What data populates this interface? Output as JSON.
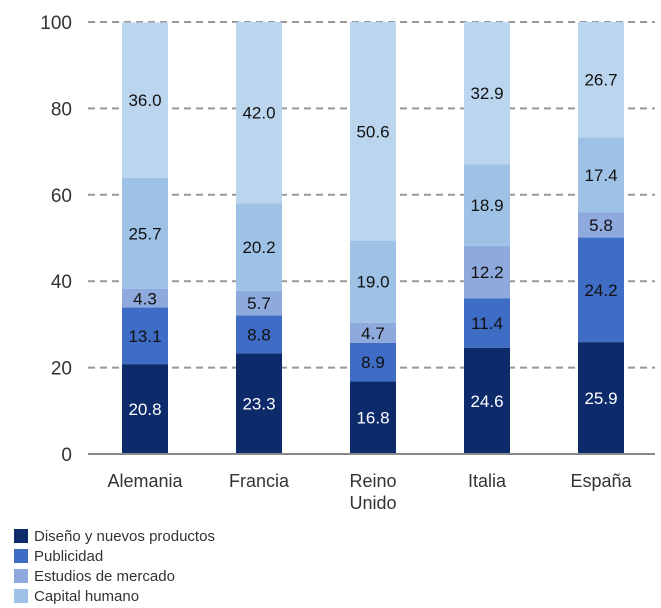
{
  "chart_data": {
    "type": "bar",
    "stacked": true,
    "categories": [
      [
        "Alemania"
      ],
      [
        "Francia"
      ],
      [
        "Reino",
        "Unido"
      ],
      [
        "Italia"
      ],
      [
        "España"
      ]
    ],
    "ylim": [
      0,
      100
    ],
    "yticks": [
      0,
      20,
      40,
      60,
      80,
      100
    ],
    "grid": "dashed horizontal",
    "legend_position": "bottom-left",
    "series": [
      {
        "name": "Diseño y nuevos productos",
        "color": "#0d2b6b",
        "label_color": "#ffffff",
        "values": [
          20.8,
          23.3,
          16.8,
          24.6,
          25.9
        ]
      },
      {
        "name": "Publicidad",
        "color": "#3f6cc4",
        "label_color": "#111111",
        "values": [
          13.1,
          8.8,
          8.9,
          11.4,
          24.2
        ]
      },
      {
        "name": "Estudios de mercado",
        "color": "#8ea9dc",
        "label_color": "#111111",
        "values": [
          4.3,
          5.7,
          4.7,
          12.2,
          5.8
        ]
      },
      {
        "name": "Capital humano",
        "color": "#9ec2e6",
        "label_color": "#111111",
        "values": [
          25.7,
          20.2,
          19.0,
          18.9,
          17.4
        ]
      },
      {
        "name": "",
        "color": "#bcd5ef",
        "label_color": "#111111",
        "values": [
          36.0,
          42.0,
          50.6,
          32.9,
          26.7
        ]
      }
    ]
  }
}
